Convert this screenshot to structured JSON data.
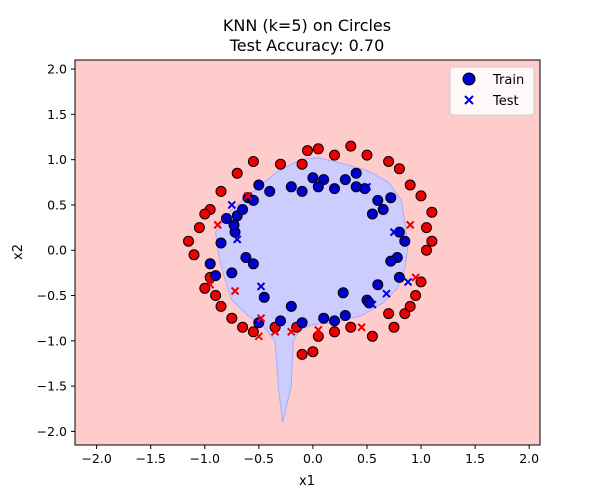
{
  "chart_data": {
    "type": "scatter",
    "title": "KNN (k=5) on Circles",
    "subtitle": "Test Accuracy: 0.70",
    "xlabel": "x1",
    "ylabel": "x2",
    "xlim": [
      -2.2,
      2.1
    ],
    "ylim": [
      -2.15,
      2.1
    ],
    "x_ticks": [
      -2.0,
      -1.5,
      -1.0,
      -0.5,
      0.0,
      0.5,
      1.0,
      1.5,
      2.0
    ],
    "y_ticks": [
      -2.0,
      -1.5,
      -1.0,
      -0.5,
      0.0,
      0.5,
      1.0,
      1.5,
      2.0
    ],
    "x_tick_labels": [
      "−2.0",
      "−1.5",
      "−1.0",
      "−0.5",
      "0.0",
      "0.5",
      "1.0",
      "1.5",
      "2.0"
    ],
    "y_tick_labels": [
      "−2.0",
      "−1.5",
      "−1.0",
      "−0.5",
      "0.0",
      "0.5",
      "1.0",
      "1.5",
      "2.0"
    ],
    "grid": false,
    "legend_position": "top-right",
    "colors": {
      "background_outer": "#ffcccc",
      "background_inner": "#ccccff",
      "class_inner": "#0000cc",
      "class_outer": "#ee0000",
      "test_inner": "#0000dd",
      "test_outer": "#ee0000"
    },
    "decision_region_inner": [
      [
        -0.12,
        1.0
      ],
      [
        0.05,
        1.02
      ],
      [
        0.3,
        0.95
      ],
      [
        0.5,
        0.88
      ],
      [
        0.7,
        0.75
      ],
      [
        0.82,
        0.55
      ],
      [
        0.85,
        0.3
      ],
      [
        0.88,
        0.05
      ],
      [
        0.85,
        -0.2
      ],
      [
        0.78,
        -0.42
      ],
      [
        0.65,
        -0.58
      ],
      [
        0.45,
        -0.72
      ],
      [
        0.2,
        -0.8
      ],
      [
        0.0,
        -0.82
      ],
      [
        -0.12,
        -0.88
      ],
      [
        -0.18,
        -1.0
      ],
      [
        -0.2,
        -1.5
      ],
      [
        -0.28,
        -1.9
      ],
      [
        -0.32,
        -1.5
      ],
      [
        -0.35,
        -1.0
      ],
      [
        -0.45,
        -0.85
      ],
      [
        -0.6,
        -0.72
      ],
      [
        -0.75,
        -0.55
      ],
      [
        -0.82,
        -0.3
      ],
      [
        -0.88,
        0.0
      ],
      [
        -0.9,
        0.2
      ],
      [
        -0.75,
        0.45
      ],
      [
        -0.55,
        0.65
      ],
      [
        -0.35,
        0.85
      ]
    ],
    "legend": [
      {
        "name": "Train",
        "marker": "circle"
      },
      {
        "name": "Test",
        "marker": "x"
      }
    ],
    "series": [
      {
        "name": "Train",
        "marker": "circle",
        "inner": [
          [
            0.0,
            0.8
          ],
          [
            0.1,
            0.78
          ],
          [
            -0.2,
            0.7
          ],
          [
            -0.4,
            0.65
          ],
          [
            -0.5,
            0.72
          ],
          [
            -0.6,
            0.58
          ],
          [
            -0.7,
            0.38
          ],
          [
            -0.72,
            0.2
          ],
          [
            -0.85,
            0.08
          ],
          [
            -0.95,
            -0.15
          ],
          [
            -0.9,
            -0.28
          ],
          [
            -0.75,
            -0.25
          ],
          [
            -0.62,
            -0.08
          ],
          [
            -0.55,
            -0.15
          ],
          [
            -0.45,
            -0.52
          ],
          [
            -0.5,
            -0.8
          ],
          [
            -0.3,
            -0.78
          ],
          [
            -0.2,
            -0.62
          ],
          [
            -0.1,
            -0.8
          ],
          [
            0.1,
            -0.75
          ],
          [
            0.2,
            -0.78
          ],
          [
            0.3,
            -0.72
          ],
          [
            0.28,
            -0.47
          ],
          [
            0.5,
            -0.55
          ],
          [
            0.52,
            -0.58
          ],
          [
            0.6,
            -0.38
          ],
          [
            0.8,
            -0.3
          ],
          [
            0.78,
            -0.08
          ],
          [
            0.72,
            -0.12
          ],
          [
            0.85,
            0.1
          ],
          [
            0.8,
            0.2
          ],
          [
            0.65,
            0.45
          ],
          [
            0.6,
            0.55
          ],
          [
            0.48,
            0.68
          ],
          [
            0.4,
            0.7
          ],
          [
            0.3,
            0.78
          ],
          [
            0.2,
            0.68
          ],
          [
            0.05,
            0.7
          ],
          [
            -0.1,
            0.65
          ],
          [
            0.55,
            0.4
          ],
          [
            0.72,
            0.58
          ],
          [
            0.4,
            0.85
          ],
          [
            -0.65,
            0.45
          ],
          [
            -0.8,
            0.35
          ],
          [
            -0.73,
            0.28
          ],
          [
            -0.55,
            0.55
          ]
        ],
        "outer": [
          [
            -0.05,
            1.1
          ],
          [
            0.05,
            1.12
          ],
          [
            -0.3,
            0.95
          ],
          [
            -0.55,
            0.98
          ],
          [
            -0.7,
            0.85
          ],
          [
            -0.85,
            0.65
          ],
          [
            -0.95,
            0.45
          ],
          [
            -1.0,
            0.4
          ],
          [
            -1.05,
            0.25
          ],
          [
            -1.15,
            0.1
          ],
          [
            -1.1,
            -0.05
          ],
          [
            -1.0,
            -0.42
          ],
          [
            -0.9,
            -0.5
          ],
          [
            -0.85,
            -0.62
          ],
          [
            -0.75,
            -0.75
          ],
          [
            -0.65,
            -0.85
          ],
          [
            -0.55,
            -0.9
          ],
          [
            -0.35,
            -0.85
          ],
          [
            -0.15,
            -0.85
          ],
          [
            0.05,
            -0.95
          ],
          [
            0.2,
            -0.9
          ],
          [
            0.35,
            -0.85
          ],
          [
            0.55,
            -0.95
          ],
          [
            0.7,
            -0.7
          ],
          [
            0.85,
            -0.7
          ],
          [
            0.95,
            -0.5
          ],
          [
            1.0,
            -0.35
          ],
          [
            1.05,
            0.0
          ],
          [
            1.1,
            0.1
          ],
          [
            1.05,
            0.25
          ],
          [
            1.1,
            0.42
          ],
          [
            1.0,
            0.6
          ],
          [
            0.9,
            0.72
          ],
          [
            0.8,
            0.9
          ],
          [
            0.7,
            0.98
          ],
          [
            0.5,
            1.05
          ],
          [
            0.35,
            1.15
          ],
          [
            0.2,
            1.05
          ],
          [
            -0.1,
            0.95
          ],
          [
            0.0,
            -1.12
          ],
          [
            -0.1,
            -1.15
          ],
          [
            0.75,
            -0.85
          ],
          [
            0.9,
            -0.62
          ],
          [
            -0.95,
            -0.3
          ]
        ]
      },
      {
        "name": "Test",
        "marker": "x",
        "inner": [
          [
            -0.7,
            0.12
          ],
          [
            0.55,
            -0.6
          ],
          [
            0.68,
            -0.48
          ],
          [
            0.88,
            -0.35
          ],
          [
            0.75,
            0.2
          ],
          [
            0.5,
            0.7
          ],
          [
            -0.48,
            -0.4
          ],
          [
            -0.75,
            0.5
          ]
        ],
        "outer": [
          [
            -0.88,
            0.28
          ],
          [
            -0.72,
            -0.45
          ],
          [
            -0.5,
            -0.95
          ],
          [
            -0.48,
            -0.75
          ],
          [
            -0.35,
            -0.9
          ],
          [
            -0.2,
            -0.9
          ],
          [
            0.05,
            -0.88
          ],
          [
            0.45,
            -0.85
          ],
          [
            0.95,
            -0.3
          ],
          [
            0.9,
            0.28
          ],
          [
            -0.95,
            -0.38
          ],
          [
            -0.6,
            0.6
          ]
        ]
      }
    ]
  }
}
